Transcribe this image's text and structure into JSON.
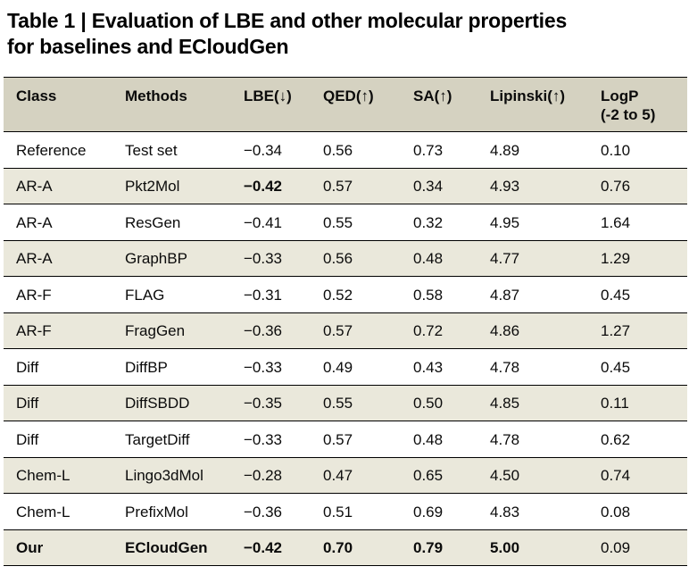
{
  "title": {
    "line1": "Table 1 | Evaluation of LBE and other molecular properties",
    "line2": "for baselines and ECloudGen"
  },
  "colors": {
    "header_bg": "#d5d2c1",
    "stripe_bg": "#eae8db",
    "row_bg": "#ffffff",
    "border": "#000000",
    "text": "#0b0b0b"
  },
  "table": {
    "columns": [
      {
        "label": "Class",
        "sub": ""
      },
      {
        "label": "Methods",
        "sub": ""
      },
      {
        "label": "LBE(↓)",
        "sub": ""
      },
      {
        "label": "QED(↑)",
        "sub": ""
      },
      {
        "label": "SA(↑)",
        "sub": ""
      },
      {
        "label": "Lipinski(↑)",
        "sub": ""
      },
      {
        "label": "LogP",
        "sub": "(-2 to 5)"
      }
    ],
    "rows": [
      {
        "cells": [
          "Reference",
          "Test set",
          "−0.34",
          "0.56",
          "0.73",
          "4.89",
          "0.10"
        ],
        "bold": [
          false,
          false,
          false,
          false,
          false,
          false,
          false
        ],
        "shaded": false
      },
      {
        "cells": [
          "AR-A",
          "Pkt2Mol",
          "−0.42",
          "0.57",
          "0.34",
          "4.93",
          "0.76"
        ],
        "bold": [
          false,
          false,
          true,
          false,
          false,
          false,
          false
        ],
        "shaded": true
      },
      {
        "cells": [
          "AR-A",
          "ResGen",
          "−0.41",
          "0.55",
          "0.32",
          "4.95",
          "1.64"
        ],
        "bold": [
          false,
          false,
          false,
          false,
          false,
          false,
          false
        ],
        "shaded": false
      },
      {
        "cells": [
          "AR-A",
          "GraphBP",
          "−0.33",
          "0.56",
          "0.48",
          "4.77",
          "1.29"
        ],
        "bold": [
          false,
          false,
          false,
          false,
          false,
          false,
          false
        ],
        "shaded": true
      },
      {
        "cells": [
          "AR-F",
          "FLAG",
          "−0.31",
          "0.52",
          "0.58",
          "4.87",
          "0.45"
        ],
        "bold": [
          false,
          false,
          false,
          false,
          false,
          false,
          false
        ],
        "shaded": false
      },
      {
        "cells": [
          "AR-F",
          "FragGen",
          "−0.36",
          "0.57",
          "0.72",
          "4.86",
          "1.27"
        ],
        "bold": [
          false,
          false,
          false,
          false,
          false,
          false,
          false
        ],
        "shaded": true
      },
      {
        "cells": [
          "Diff",
          "DiffBP",
          "−0.33",
          "0.49",
          "0.43",
          "4.78",
          "0.45"
        ],
        "bold": [
          false,
          false,
          false,
          false,
          false,
          false,
          false
        ],
        "shaded": false
      },
      {
        "cells": [
          "Diff",
          "DiffSBDD",
          "−0.35",
          "0.55",
          "0.50",
          "4.85",
          "0.11"
        ],
        "bold": [
          false,
          false,
          false,
          false,
          false,
          false,
          false
        ],
        "shaded": true
      },
      {
        "cells": [
          "Diff",
          "TargetDiff",
          "−0.33",
          "0.57",
          "0.48",
          "4.78",
          "0.62"
        ],
        "bold": [
          false,
          false,
          false,
          false,
          false,
          false,
          false
        ],
        "shaded": false
      },
      {
        "cells": [
          "Chem-L",
          "Lingo3dMol",
          "−0.28",
          "0.47",
          "0.65",
          "4.50",
          "0.74"
        ],
        "bold": [
          false,
          false,
          false,
          false,
          false,
          false,
          false
        ],
        "shaded": true
      },
      {
        "cells": [
          "Chem-L",
          "PrefixMol",
          "−0.36",
          "0.51",
          "0.69",
          "4.83",
          "0.08"
        ],
        "bold": [
          false,
          false,
          false,
          false,
          false,
          false,
          false
        ],
        "shaded": false
      },
      {
        "cells": [
          "Our",
          "ECloudGen",
          "−0.42",
          "0.70",
          "0.79",
          "5.00",
          "0.09"
        ],
        "bold": [
          true,
          true,
          true,
          true,
          true,
          true,
          false
        ],
        "shaded": true
      }
    ]
  }
}
